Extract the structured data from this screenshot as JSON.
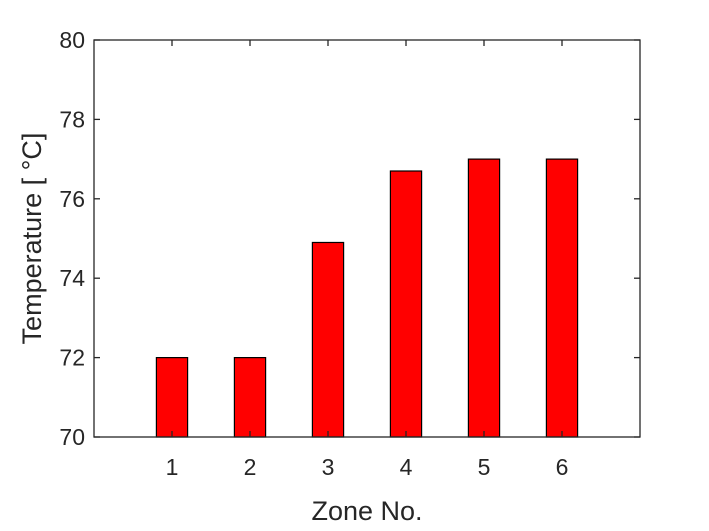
{
  "chart_data": {
    "type": "bar",
    "categories": [
      "1",
      "2",
      "3",
      "4",
      "5",
      "6"
    ],
    "values": [
      72.0,
      72.0,
      74.9,
      76.7,
      77.0,
      77.0
    ],
    "xlabel": "Zone No.",
    "ylabel": "Temperature [  °C]",
    "ylim": [
      70,
      80
    ],
    "xlim": [
      0,
      7
    ],
    "yticks": [
      70,
      72,
      74,
      76,
      78,
      80
    ],
    "bar_color": "#ff0000",
    "grid": false,
    "legend": "none"
  }
}
